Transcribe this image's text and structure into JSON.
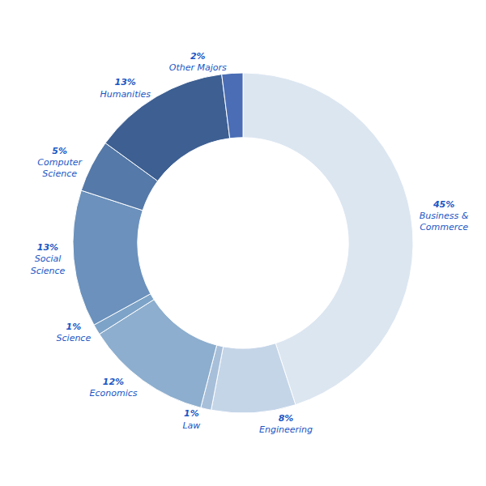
{
  "chart_data": {
    "type": "donut",
    "categories": [
      "Business &\nCommerce",
      "Engineering",
      "Law",
      "Economics",
      "Science",
      "Social\nScience",
      "Computer\nScience",
      "Humanities",
      "Other Majors"
    ],
    "values": [
      45,
      8,
      1,
      12,
      1,
      13,
      5,
      13,
      2
    ],
    "value_labels": [
      "45%",
      "8%",
      "1%",
      "12%",
      "1%",
      "13%",
      "5%",
      "13%",
      "2%"
    ],
    "colors": [
      "#dce6f1",
      "#c5d5e8",
      "#a8bfda",
      "#8daece",
      "#7da3c8",
      "#6b91bc",
      "#5579a8",
      "#3d5f92",
      "#4a6db5"
    ],
    "data_labels": true
  }
}
